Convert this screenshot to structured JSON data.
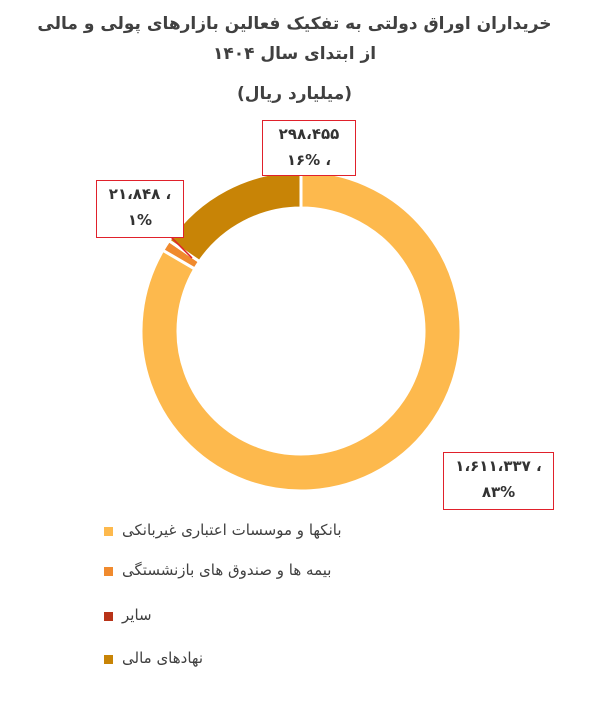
{
  "chart_data": {
    "type": "pie",
    "title_lines": [
      "خریداران اوراق دولتی به تفکیک فعالین بازارهای پولی و مالی",
      "از ابتدای سال ۱۴۰۴",
      "(میلیارد ریال)"
    ],
    "slices": [
      {
        "label": "بانکها و موسسات اعتباری غیربانکی",
        "value": 1611337,
        "value_text": "۱،۶۱۱،۳۳۷ ،",
        "percent_text": "۸۳%",
        "color": "#fdb94d"
      },
      {
        "label": "بیمه ها و صندوق های بازنشستگی",
        "value": 21848,
        "value_text": "۲۱،۸۴۸ ،",
        "percent_text": "۱%",
        "color": "#f08a2e"
      },
      {
        "label": "سایر",
        "value": 0,
        "value_text": "",
        "percent_text": "",
        "color": "#b83318"
      },
      {
        "label": "نهادهای مالی",
        "value": 298455,
        "value_text": "۲۹۸،۴۵۵",
        "percent_text": "۱۶% ،",
        "color": "#c88406"
      }
    ],
    "chart_kind": "doughnut",
    "legend_position": "bottom"
  }
}
